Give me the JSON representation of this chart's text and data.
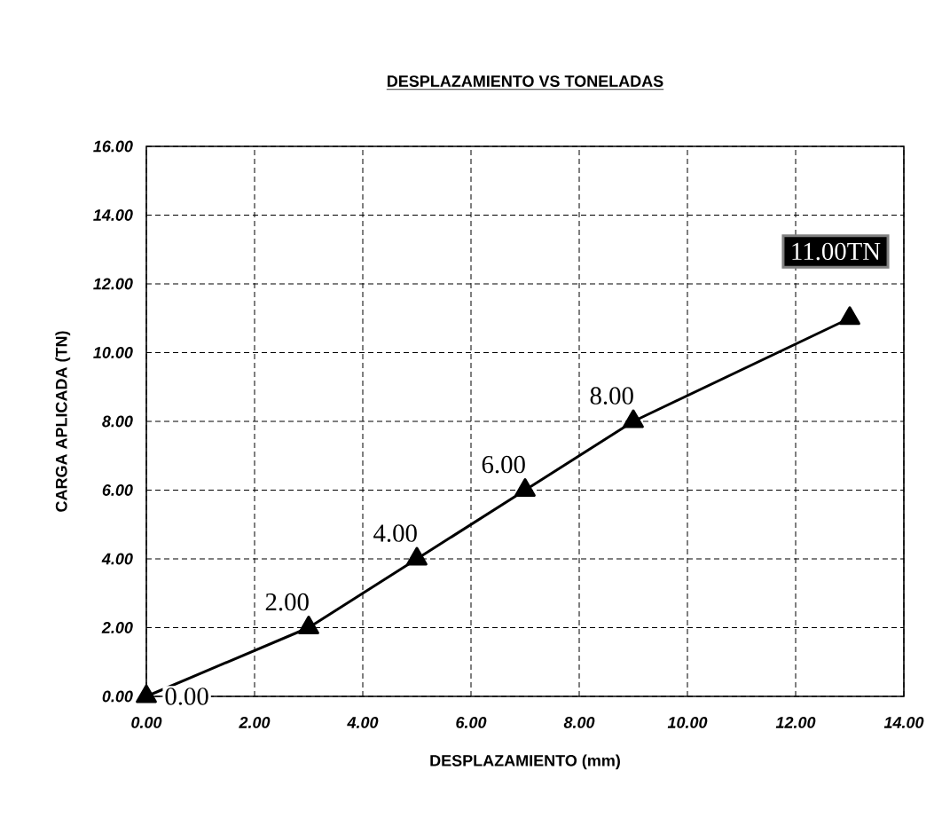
{
  "chart_data": {
    "type": "line",
    "title": "DESPLAZAMIENTO VS TONELADAS",
    "xlabel": "DESPLAZAMIENTO (mm)",
    "ylabel": "CARGA APLICADA (TN)",
    "x": [
      0,
      3,
      5,
      7,
      9,
      13
    ],
    "series": [
      {
        "color": "#000000",
        "values": [
          0,
          2,
          4,
          6,
          8,
          11
        ],
        "value_labels": [
          "0.00",
          "2.00",
          "4.00",
          "6.00",
          "8.00",
          null
        ]
      }
    ],
    "annotations": [
      {
        "text": "11.00TN",
        "x": 13,
        "y": 11
      }
    ],
    "xlim": [
      0,
      14
    ],
    "ylim": [
      0,
      16
    ],
    "xticks": [
      {
        "value": 0,
        "label": "0.00"
      },
      {
        "value": 2,
        "label": "2.00"
      },
      {
        "value": 4,
        "label": "4.00"
      },
      {
        "value": 6,
        "label": "6.00"
      },
      {
        "value": 8,
        "label": "8.00"
      },
      {
        "value": 10,
        "label": "10.00"
      },
      {
        "value": 12,
        "label": "12.00"
      },
      {
        "value": 14,
        "label": "14.00"
      }
    ],
    "yticks": [
      {
        "value": 0,
        "label": "0.00"
      },
      {
        "value": 2,
        "label": "2.00"
      },
      {
        "value": 4,
        "label": "4.00"
      },
      {
        "value": 6,
        "label": "6.00"
      },
      {
        "value": 8,
        "label": "8.00"
      },
      {
        "value": 10,
        "label": "10.00"
      },
      {
        "value": 12,
        "label": "12.00"
      },
      {
        "value": 14,
        "label": "14.00"
      },
      {
        "value": 16,
        "label": "16.00"
      }
    ],
    "grid": true,
    "marker": "triangle",
    "line_style": "solid"
  }
}
